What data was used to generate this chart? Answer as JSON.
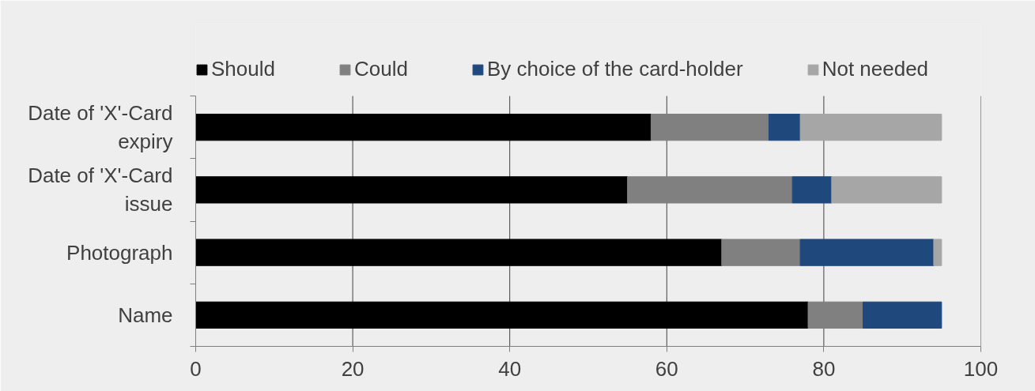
{
  "chart_data": {
    "type": "bar",
    "orientation": "horizontal",
    "stacked": true,
    "categories": [
      "Date of 'X'-Card expiry",
      "Date of 'X'-Card issue",
      "Photograph",
      "Name"
    ],
    "series": [
      {
        "name": "Should",
        "color": "#000000",
        "values": [
          58,
          55,
          67,
          78
        ]
      },
      {
        "name": "Could",
        "color": "#808080",
        "values": [
          15,
          21,
          10,
          7
        ]
      },
      {
        "name": "By choice of the card-holder",
        "color": "#1f497d",
        "values": [
          4,
          5,
          17,
          10
        ]
      },
      {
        "name": "Not needed",
        "color": "#a6a6a6",
        "values": [
          18,
          14,
          1,
          null
        ]
      }
    ],
    "xlim": [
      0,
      100
    ],
    "xticks": [
      0,
      20,
      40,
      60,
      80,
      100
    ],
    "grid": "x",
    "legend": "top"
  }
}
